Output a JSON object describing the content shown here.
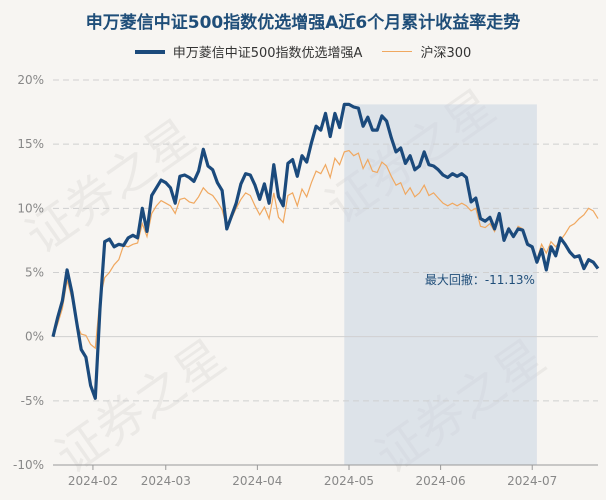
{
  "chart_data": {
    "type": "line",
    "title": "申万菱信中证500指数优选增强A近6个月累计收益率走势",
    "xlabel": "",
    "ylabel": "",
    "ylim": [
      -10,
      20
    ],
    "y_ticks": [
      "20%",
      "15%",
      "10%",
      "5%",
      "0%",
      "-5%",
      "-10%"
    ],
    "y_tick_values": [
      20,
      15,
      10,
      5,
      0,
      -5,
      -10
    ],
    "x_tick_labels": [
      "2024-02",
      "2024-03",
      "2024-04",
      "2024-05",
      "2024-06",
      "2024-07"
    ],
    "x_tick_positions": [
      8.5,
      24,
      43.5,
      63,
      82.5,
      102
    ],
    "x_range": [
      0,
      116
    ],
    "grid": true,
    "legend_position": "top",
    "series": [
      {
        "name": "申万菱信中证500指数优选增强A",
        "color": "#1b4a7c",
        "x": [
          0,
          1,
          2,
          3,
          4,
          5,
          6,
          7,
          8,
          9,
          10,
          11,
          12,
          13,
          14,
          15,
          16,
          17,
          18,
          19,
          20,
          21,
          22,
          23,
          24,
          25,
          26,
          27,
          28,
          29,
          30,
          31,
          32,
          33,
          34,
          35,
          36,
          37,
          38,
          39,
          40,
          41,
          42,
          43,
          44,
          45,
          46,
          47,
          48,
          49,
          50,
          51,
          52,
          53,
          54,
          55,
          56,
          57,
          58,
          59,
          60,
          61,
          62,
          63,
          64,
          65,
          66,
          67,
          68,
          69,
          70,
          71,
          72,
          73,
          74,
          75,
          76,
          77,
          78,
          79,
          80,
          81,
          82,
          83,
          84,
          85,
          86,
          87,
          88,
          89,
          90,
          91,
          92,
          93,
          94,
          95,
          96,
          97,
          98,
          99,
          100,
          101,
          102,
          103,
          104,
          105,
          106,
          107,
          108,
          109,
          110,
          111,
          112,
          113,
          114,
          115,
          116
        ],
        "values": [
          0,
          1.5,
          2.8,
          5.2,
          3.5,
          1.2,
          -1.0,
          -1.6,
          -3.8,
          -4.8,
          2.2,
          7.4,
          7.6,
          7.0,
          7.2,
          7.1,
          7.7,
          7.9,
          7.7,
          10.0,
          8.2,
          11.0,
          11.6,
          12.2,
          12.0,
          11.6,
          10.4,
          12.5,
          12.6,
          12.4,
          12.1,
          12.9,
          14.6,
          13.3,
          13.0,
          12.0,
          11.4,
          8.4,
          9.4,
          10.4,
          11.9,
          12.7,
          12.6,
          11.8,
          10.7,
          11.9,
          10.4,
          13.4,
          10.9,
          10.2,
          13.5,
          13.8,
          12.5,
          14.1,
          13.6,
          15.1,
          16.4,
          16.1,
          17.4,
          15.6,
          17.4,
          16.3,
          18.1,
          18.1,
          17.9,
          17.8,
          16.4,
          17.1,
          16.1,
          16.1,
          17.2,
          16.8,
          15.5,
          14.4,
          14.7,
          13.5,
          14.1,
          13.0,
          13.3,
          14.4,
          13.4,
          13.3,
          13.0,
          12.6,
          12.4,
          12.7,
          12.5,
          12.7,
          12.4,
          10.5,
          10.8,
          9.2,
          9.0,
          9.3,
          8.4,
          9.6,
          7.5,
          8.4,
          7.8,
          8.4,
          8.3,
          7.2,
          7.0,
          5.8,
          6.8,
          5.2,
          7.0,
          6.3,
          7.7,
          7.2,
          6.6,
          6.2,
          6.3,
          5.3,
          6.0,
          5.8,
          5.3
        ]
      },
      {
        "name": "沪深300",
        "color": "#f0a860",
        "x": [
          0,
          1,
          2,
          3,
          4,
          5,
          6,
          7,
          8,
          9,
          10,
          11,
          12,
          13,
          14,
          15,
          16,
          17,
          18,
          19,
          20,
          21,
          22,
          23,
          24,
          25,
          26,
          27,
          28,
          29,
          30,
          31,
          32,
          33,
          34,
          35,
          36,
          37,
          38,
          39,
          40,
          41,
          42,
          43,
          44,
          45,
          46,
          47,
          48,
          49,
          50,
          51,
          52,
          53,
          54,
          55,
          56,
          57,
          58,
          59,
          60,
          61,
          62,
          63,
          64,
          65,
          66,
          67,
          68,
          69,
          70,
          71,
          72,
          73,
          74,
          75,
          76,
          77,
          78,
          79,
          80,
          81,
          82,
          83,
          84,
          85,
          86,
          87,
          88,
          89,
          90,
          91,
          92,
          93,
          94,
          95,
          96,
          97,
          98,
          99,
          100,
          101,
          102,
          103,
          104,
          105,
          106,
          107,
          108,
          109,
          110,
          111,
          112,
          113,
          114,
          115,
          116
        ],
        "values": [
          0,
          1.0,
          2.2,
          4.4,
          3.0,
          1.0,
          0.2,
          0.1,
          -0.6,
          -0.9,
          3.0,
          4.6,
          5.0,
          5.6,
          6.0,
          7.1,
          7.0,
          7.2,
          7.3,
          8.8,
          7.8,
          9.6,
          10.2,
          10.6,
          10.4,
          10.2,
          9.6,
          10.7,
          10.8,
          10.5,
          10.4,
          10.9,
          11.6,
          11.2,
          11.0,
          10.5,
          9.9,
          8.5,
          9.2,
          10.0,
          10.7,
          11.2,
          11.0,
          10.2,
          9.5,
          10.1,
          9.2,
          11.2,
          9.3,
          8.9,
          11.0,
          11.2,
          10.2,
          11.5,
          10.9,
          12.0,
          12.9,
          12.7,
          13.4,
          12.4,
          13.9,
          13.4,
          14.4,
          14.5,
          14.1,
          14.3,
          13.1,
          13.8,
          12.9,
          12.8,
          13.6,
          13.3,
          12.5,
          11.8,
          12.0,
          11.1,
          11.6,
          10.9,
          11.2,
          11.8,
          11.0,
          11.2,
          10.8,
          10.4,
          10.2,
          10.4,
          10.2,
          10.4,
          10.2,
          9.8,
          10.0,
          8.6,
          8.5,
          8.8,
          8.2,
          9.3,
          7.7,
          8.5,
          7.8,
          8.6,
          8.4,
          7.4,
          6.8,
          6.0,
          7.2,
          6.5,
          7.4,
          7.0,
          7.5,
          8.0,
          8.6,
          8.8,
          9.2,
          9.5,
          10.0,
          9.8,
          9.2
        ]
      }
    ],
    "max_drawdown": {
      "label": "最大回撤：-11.13%",
      "start_x": 62,
      "end_x": 103,
      "shade_color": "#c8d4e2"
    }
  }
}
